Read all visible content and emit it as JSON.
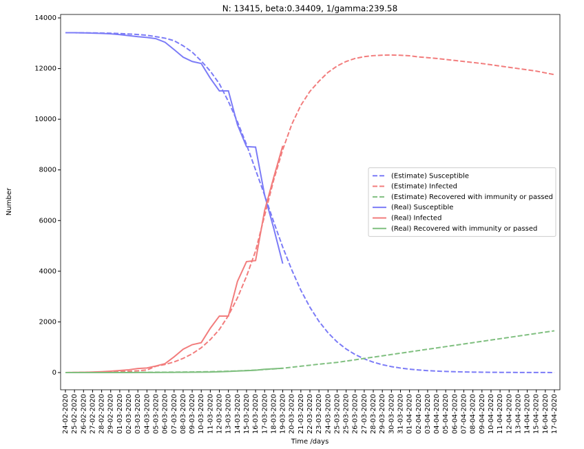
{
  "chart_data": {
    "type": "line",
    "title": "N: 13415, beta:0.34409, 1/gamma:239.58",
    "x_label": "Time /days",
    "y_label": "Number",
    "categories": [
      "24-02-2020",
      "25-02-2020",
      "26-02-2020",
      "27-02-2020",
      "28-02-2020",
      "29-02-2020",
      "01-03-2020",
      "02-03-2020",
      "03-03-2020",
      "04-03-2020",
      "05-03-2020",
      "06-03-2020",
      "07-03-2020",
      "08-03-2020",
      "09-03-2020",
      "10-03-2020",
      "11-03-2020",
      "12-03-2020",
      "13-03-2020",
      "14-03-2020",
      "15-03-2020",
      "16-03-2020",
      "17-03-2020",
      "18-03-2020",
      "19-03-2020",
      "20-03-2020",
      "21-03-2020",
      "22-03-2020",
      "23-03-2020",
      "24-03-2020",
      "25-03-2020",
      "25-03-2020",
      "26-03-2020",
      "27-03-2020",
      "28-03-2020",
      "29-03-2020",
      "30-03-2020",
      "31-03-2020",
      "01-04-2020",
      "02-04-2020",
      "03-04-2020",
      "04-04-2020",
      "05-04-2020",
      "06-04-2020",
      "07-04-2020",
      "08-04-2020",
      "09-04-2020",
      "10-04-2020",
      "11-04-2020",
      "12-04-2020",
      "13-04-2020",
      "14-04-2020",
      "15-04-2020",
      "16-04-2020",
      "17-04-2020"
    ],
    "series": [
      {
        "name": "(Estimate) Susceptible",
        "color": "#7b7bf7",
        "dashed": true,
        "values": [
          13415,
          13414,
          13412,
          13408,
          13402,
          13394,
          13382,
          13366,
          13344,
          13314,
          13260,
          13200,
          13100,
          12900,
          12650,
          12300,
          11900,
          11400,
          10700,
          9900,
          9000,
          8000,
          7000,
          5950,
          4950,
          4050,
          3250,
          2580,
          2020,
          1570,
          1210,
          930,
          710,
          540,
          410,
          310,
          235,
          178,
          134,
          101,
          76,
          57,
          43,
          32,
          24,
          18,
          14,
          10,
          8,
          6,
          4,
          3,
          2,
          2,
          1
        ]
      },
      {
        "name": "(Estimate) Infected",
        "color": "#f27c7c",
        "dashed": true,
        "values": [
          0,
          3,
          7,
          12,
          18,
          26,
          37,
          52,
          72,
          100,
          250,
          320,
          420,
          560,
          740,
          980,
          1300,
          1700,
          2250,
          2950,
          3800,
          4800,
          6200,
          7600,
          8800,
          9800,
          10550,
          11100,
          11500,
          11850,
          12100,
          12280,
          12400,
          12470,
          12510,
          12530,
          12535,
          12525,
          12505,
          12460,
          12430,
          12400,
          12360,
          12320,
          12280,
          12240,
          12200,
          12150,
          12100,
          12050,
          12000,
          11950,
          11900,
          11830,
          11760
        ]
      },
      {
        "name": "(Estimate) Recovered with immunity or passed",
        "color": "#7fbf7f",
        "dashed": true,
        "values": [
          0,
          1,
          2,
          3,
          4,
          5,
          6,
          7,
          8,
          10,
          12,
          14,
          17,
          20,
          24,
          29,
          35,
          43,
          53,
          65,
          80,
          98,
          120,
          144,
          170,
          210,
          250,
          290,
          330,
          365,
          400,
          452,
          504,
          556,
          608,
          660,
          712,
          764,
          816,
          868,
          920,
          972,
          1024,
          1076,
          1128,
          1180,
          1232,
          1284,
          1336,
          1388,
          1440,
          1492,
          1544,
          1596,
          1648
        ]
      },
      {
        "name": "(Real) Susceptible",
        "color": "#7b7bf7",
        "dashed": false,
        "values": [
          13415,
          13415,
          13410,
          13400,
          13390,
          13370,
          13340,
          13300,
          13260,
          13230,
          13180,
          13040,
          12750,
          12450,
          12280,
          12200,
          11620,
          11120,
          11120,
          9780,
          8920,
          8900,
          7000,
          5700,
          4300,
          null,
          null,
          null,
          null,
          null,
          null,
          null,
          null,
          null,
          null,
          null,
          null,
          null,
          null,
          null,
          null,
          null,
          null,
          null,
          null,
          null,
          null,
          null,
          null,
          null,
          null,
          null,
          null,
          null,
          null
        ]
      },
      {
        "name": "(Real) Infected",
        "color": "#f27c7c",
        "dashed": false,
        "values": [
          0,
          5,
          10,
          20,
          35,
          55,
          80,
          110,
          160,
          180,
          260,
          350,
          620,
          920,
          1100,
          1180,
          1750,
          2230,
          2230,
          3600,
          4380,
          4420,
          6400,
          7700,
          8950,
          null,
          null,
          null,
          null,
          null,
          null,
          null,
          null,
          null,
          null,
          null,
          null,
          null,
          null,
          null,
          null,
          null,
          null,
          null,
          null,
          null,
          null,
          null,
          null,
          null,
          null,
          null,
          null,
          null,
          null
        ]
      },
      {
        "name": "(Real) Recovered with immunity or passed",
        "color": "#7fbf7f",
        "dashed": false,
        "values": [
          0,
          0,
          0,
          0,
          0,
          0,
          1,
          1,
          2,
          3,
          4,
          5,
          8,
          10,
          12,
          15,
          20,
          30,
          45,
          60,
          75,
          90,
          130,
          150,
          170,
          null,
          null,
          null,
          null,
          null,
          null,
          null,
          null,
          null,
          null,
          null,
          null,
          null,
          null,
          null,
          null,
          null,
          null,
          null,
          null,
          null,
          null,
          null,
          null,
          null,
          null,
          null,
          null,
          null,
          null
        ]
      }
    ],
    "ylim": [
      -680,
      14136
    ],
    "yticks": [
      0,
      2000,
      4000,
      6000,
      8000,
      10000,
      12000,
      14000
    ],
    "legend": "center right"
  }
}
